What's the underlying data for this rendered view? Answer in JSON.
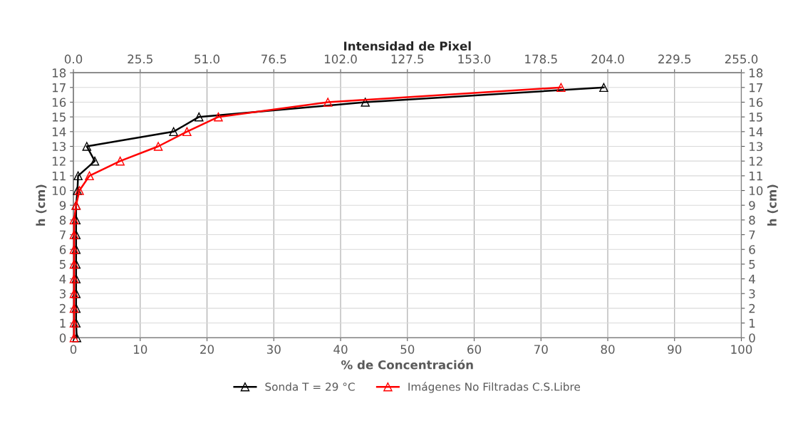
{
  "chart_data": {
    "type": "line",
    "xlabel": "% de Concentración",
    "ylabel": "h (cm)",
    "y2label": "h (cm)",
    "x2label": "Intensidad de Pixel",
    "xlim": [
      0,
      100
    ],
    "xticks": [
      0,
      10,
      20,
      30,
      40,
      50,
      60,
      70,
      80,
      90,
      100
    ],
    "ylim": [
      0,
      18
    ],
    "yticks": [
      0,
      1,
      2,
      3,
      4,
      5,
      6,
      7,
      8,
      9,
      10,
      11,
      12,
      13,
      14,
      15,
      16,
      17,
      18
    ],
    "y2lim": [
      0,
      18
    ],
    "y2ticks": [
      0,
      1,
      2,
      3,
      4,
      5,
      6,
      7,
      8,
      9,
      10,
      11,
      12,
      13,
      14,
      15,
      16,
      17,
      18
    ],
    "x2lim": [
      0,
      255
    ],
    "x2ticks": [
      {
        "value": 0,
        "label": "0.0"
      },
      25.5,
      {
        "value": 51,
        "label": "51.0"
      },
      76.5,
      {
        "value": 102,
        "label": "102.0"
      },
      127.5,
      {
        "value": 153,
        "label": "153.0"
      },
      178.5,
      {
        "value": 204,
        "label": "204.0"
      },
      229.5,
      {
        "value": 255,
        "label": "255.0"
      }
    ],
    "grid": true,
    "legend": "bottom",
    "marker": "triangle",
    "line_style": "solid",
    "series": [
      {
        "name": "Sonda T = 29 °C",
        "color": "#000000",
        "x": [
          0.5,
          0.4,
          0.4,
          0.4,
          0.4,
          0.4,
          0.4,
          0.4,
          0.4,
          0.4,
          0.6,
          0.7,
          3.2,
          2.0,
          15.0,
          18.8,
          43.7,
          79.4
        ],
        "values": [
          0,
          1,
          2,
          3,
          4,
          5,
          6,
          7,
          8,
          9,
          10,
          11,
          12,
          13,
          14,
          15,
          16,
          17
        ]
      },
      {
        "name": "Imágenes No Filtradas C.S.Libre",
        "color": "#ff0000",
        "x": [
          0.1,
          0.1,
          0.1,
          0.1,
          0.1,
          0.1,
          0.1,
          0.1,
          0.1,
          0.4,
          0.9,
          2.4,
          7.0,
          12.7,
          17.0,
          21.7,
          38.1,
          73.0
        ],
        "values": [
          0,
          1,
          2,
          3,
          4,
          5,
          6,
          7,
          8,
          9,
          10,
          11,
          12,
          13,
          14,
          15,
          16,
          17
        ]
      }
    ]
  }
}
